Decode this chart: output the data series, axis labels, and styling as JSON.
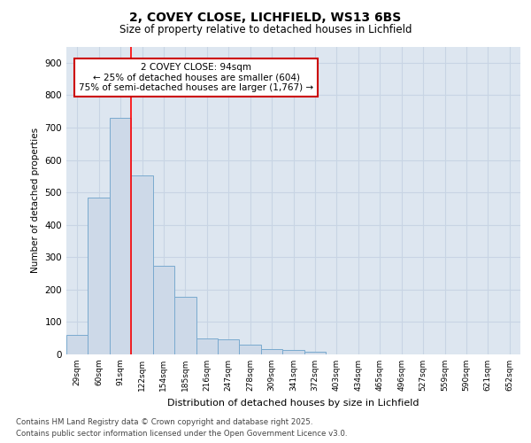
{
  "title": "2, COVEY CLOSE, LICHFIELD, WS13 6BS",
  "subtitle": "Size of property relative to detached houses in Lichfield",
  "xlabel": "Distribution of detached houses by size in Lichfield",
  "ylabel": "Number of detached properties",
  "categories": [
    "29sqm",
    "60sqm",
    "91sqm",
    "122sqm",
    "154sqm",
    "185sqm",
    "216sqm",
    "247sqm",
    "278sqm",
    "309sqm",
    "341sqm",
    "372sqm",
    "403sqm",
    "434sqm",
    "465sqm",
    "496sqm",
    "527sqm",
    "559sqm",
    "590sqm",
    "621sqm",
    "652sqm"
  ],
  "values": [
    60,
    483,
    730,
    553,
    273,
    177,
    48,
    47,
    30,
    16,
    13,
    7,
    0,
    0,
    0,
    0,
    0,
    0,
    0,
    0,
    0
  ],
  "bar_color": "#cdd9e8",
  "bar_edge_color": "#7aaacf",
  "red_line_x": 2.5,
  "annotation_text": "2 COVEY CLOSE: 94sqm\n← 25% of detached houses are smaller (604)\n75% of semi-detached houses are larger (1,767) →",
  "annotation_box_color": "#ffffff",
  "annotation_box_edge": "#cc0000",
  "grid_color": "#c8d4e4",
  "background_color": "#dde6f0",
  "ylim": [
    0,
    950
  ],
  "yticks": [
    0,
    100,
    200,
    300,
    400,
    500,
    600,
    700,
    800,
    900
  ],
  "footer_line1": "Contains HM Land Registry data © Crown copyright and database right 2025.",
  "footer_line2": "Contains public sector information licensed under the Open Government Licence v3.0.",
  "title_fontsize": 10,
  "subtitle_fontsize": 8.5
}
